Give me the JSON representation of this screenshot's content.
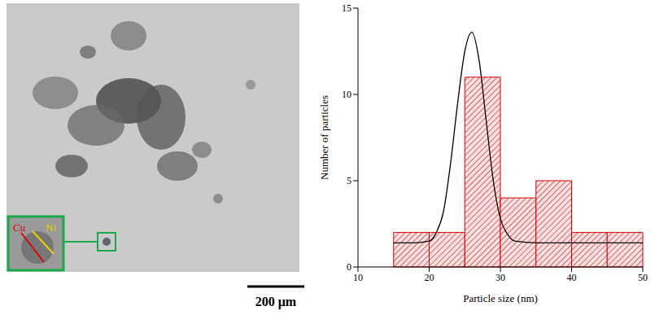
{
  "chart_data": {
    "type": "histogram",
    "bins": [
      15,
      20,
      25,
      30,
      35,
      40,
      45,
      50
    ],
    "counts": [
      2,
      2,
      11,
      4,
      5,
      2,
      2
    ],
    "color": "#d40000",
    "xlim": [
      10,
      50
    ],
    "xticks": [
      10,
      20,
      30,
      40,
      50
    ],
    "ylim": [
      0,
      15
    ],
    "yticks": [
      0,
      5,
      10,
      15
    ],
    "x_label": "Particle size (nm)",
    "y_label": "Number of particles",
    "grid": false,
    "fit": {
      "type": "line",
      "color": "#000000",
      "x": [
        15,
        18,
        20,
        21,
        22,
        23,
        24,
        25,
        26,
        27,
        28,
        29,
        30,
        31,
        32,
        35,
        40,
        45,
        50
      ],
      "values": [
        1.4,
        1.4,
        1.5,
        2.0,
        3.2,
        6.0,
        9.5,
        12.5,
        13.6,
        12.0,
        8.5,
        5.0,
        2.8,
        1.9,
        1.5,
        1.4,
        1.4,
        1.4,
        1.4
      ]
    }
  },
  "micrograph": {
    "labels": [
      {
        "text": "Cu",
        "color": "#e00000"
      },
      {
        "text": "Ni",
        "color": "#e6d200"
      }
    ],
    "scale_bar": "200 μm"
  }
}
